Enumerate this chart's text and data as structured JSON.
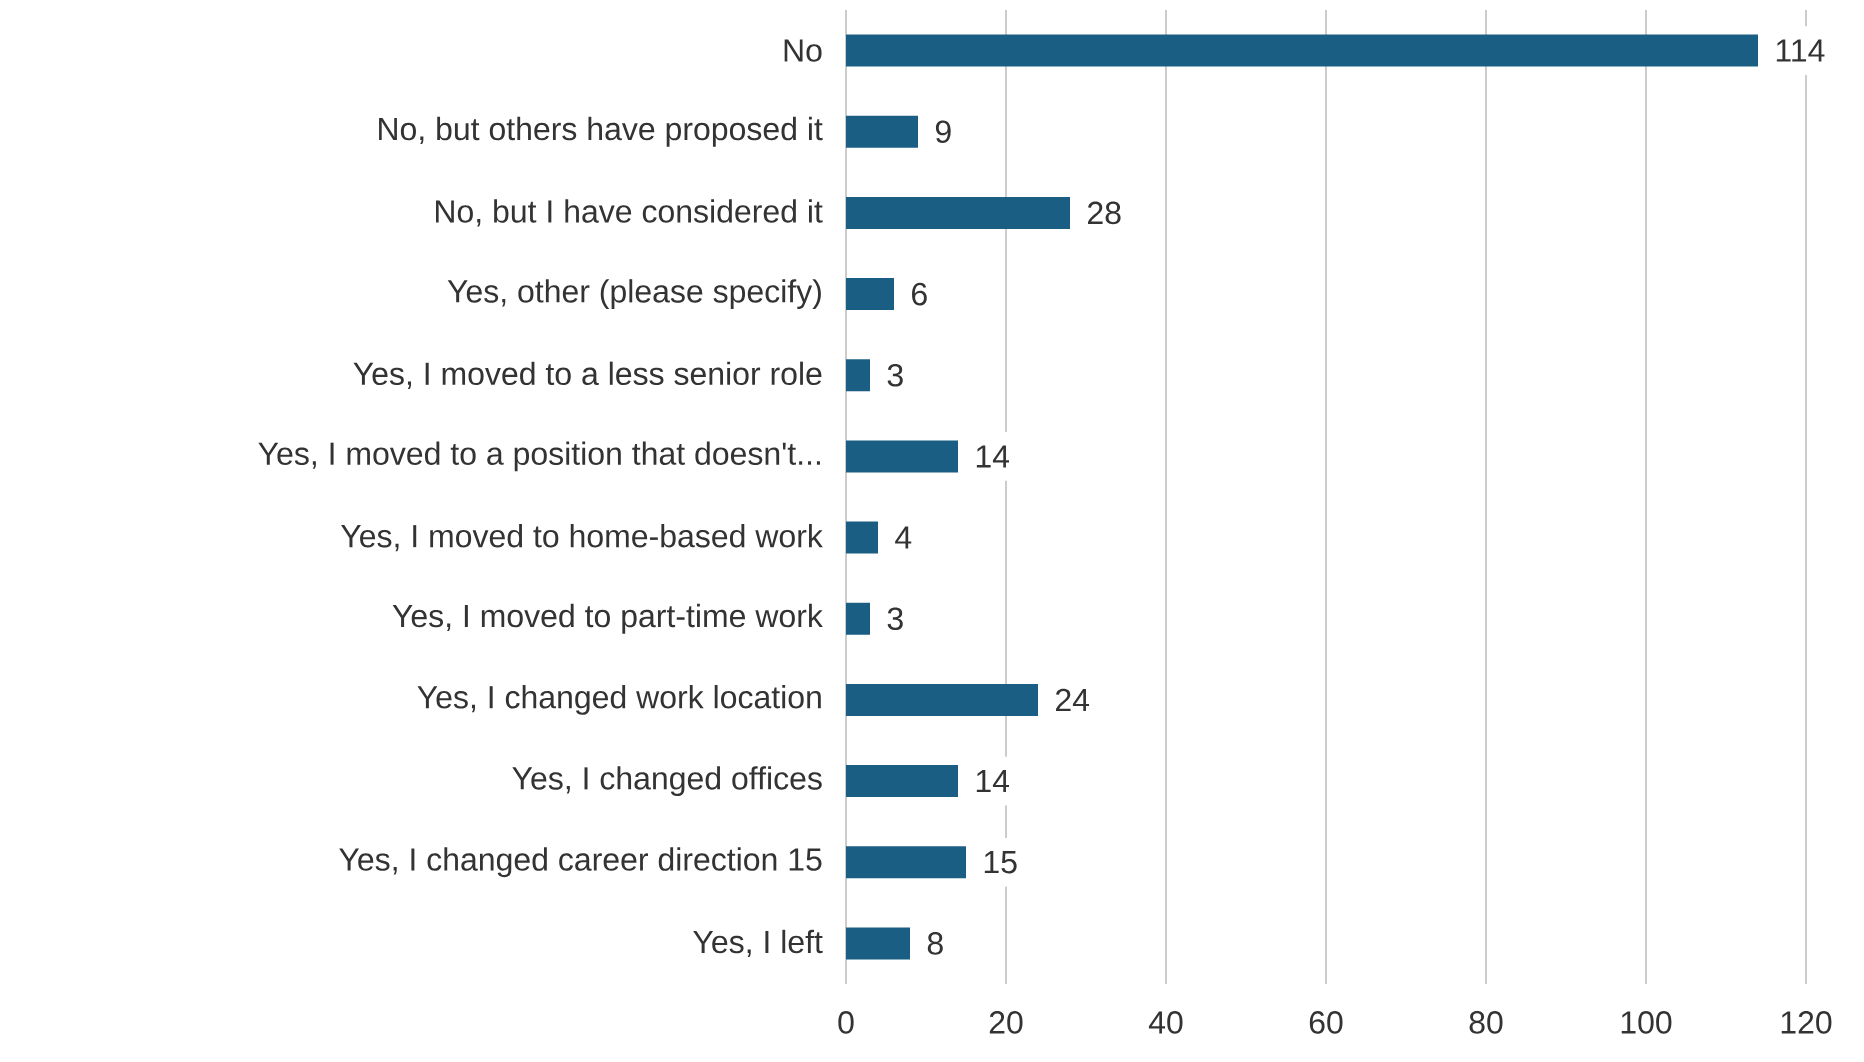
{
  "chart_data": {
    "type": "bar",
    "orientation": "horizontal",
    "categories": [
      "No",
      "No, but others have proposed it",
      "No, but I have considered it",
      "Yes, other (please specify)",
      "Yes, I moved to a less senior role",
      "Yes, I moved to a position that doesn't...",
      "Yes, I moved to home-based work",
      "Yes, I moved to part-time work",
      "Yes, I changed work location",
      "Yes, I changed offices",
      "Yes, I changed career direction 15",
      "Yes, I left"
    ],
    "values": [
      114,
      9,
      28,
      6,
      3,
      14,
      4,
      3,
      24,
      14,
      15,
      8
    ],
    "color": "#1b5e84",
    "xlim": [
      0,
      120
    ],
    "xticks": [
      0,
      20,
      40,
      60,
      80,
      100,
      120
    ],
    "grid": "x",
    "data_labels": true
  }
}
